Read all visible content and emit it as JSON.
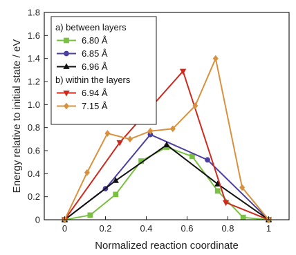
{
  "chart_data": {
    "type": "line",
    "title": "",
    "xlabel": "Normalized reaction coordinate",
    "ylabel": "Energy relative to initial state / eV",
    "xlim": [
      -0.1,
      1.1
    ],
    "ylim": [
      0,
      1.8
    ],
    "xticks": [
      0,
      0.2,
      0.4,
      0.6,
      0.8,
      1
    ],
    "xtick_labels": [
      "0",
      "0.2",
      "0.4",
      "0.6",
      "0.8",
      "1"
    ],
    "yticks": [
      0,
      0.2,
      0.4,
      0.6,
      0.8,
      1.0,
      1.2,
      1.4,
      1.6,
      1.8
    ],
    "ytick_labels": [
      "0",
      "0.2",
      "0.4",
      "0.6",
      "0.8",
      "1.0",
      "1.2",
      "1.4",
      "1.6",
      "1.8"
    ],
    "grid": false,
    "legend_position": "top-left",
    "legend_groups": [
      {
        "heading": "a) between layers",
        "series": [
          0,
          1,
          2
        ]
      },
      {
        "heading": "b) within the layers",
        "series": [
          3,
          4
        ]
      }
    ],
    "series": [
      {
        "name": "6.80 Å",
        "color": "#7ac143",
        "marker": "square",
        "x": [
          0,
          0.125,
          0.25,
          0.375,
          0.5,
          0.625,
          0.75,
          0.875,
          1.0
        ],
        "y": [
          0,
          0.04,
          0.22,
          0.51,
          0.63,
          0.55,
          0.25,
          0.02,
          0
        ]
      },
      {
        "name": "6.85 Å",
        "color": "#4b3fa0",
        "marker": "circle",
        "x": [
          0,
          0.2,
          0.42,
          0.7,
          1.0
        ],
        "y": [
          0,
          0.27,
          0.74,
          0.52,
          0
        ]
      },
      {
        "name": "6.96 Å",
        "color": "#111111",
        "marker": "triangle-up",
        "x": [
          0,
          0.25,
          0.5,
          0.75,
          1.0
        ],
        "y": [
          0,
          0.34,
          0.65,
          0.31,
          0
        ]
      },
      {
        "name": "6.94 Å",
        "color": "#cc2a1f",
        "marker": "triangle-down",
        "x": [
          0,
          0.27,
          0.58,
          0.79,
          1.0
        ],
        "y": [
          0,
          0.67,
          1.29,
          0.15,
          0
        ]
      },
      {
        "name": "7.15 Å",
        "color": "#d8913e",
        "marker": "diamond",
        "x": [
          0,
          0.11,
          0.21,
          0.32,
          0.42,
          0.53,
          0.64,
          0.74,
          0.87,
          1.0
        ],
        "y": [
          0,
          0.41,
          0.75,
          0.7,
          0.77,
          0.79,
          0.99,
          1.4,
          0.28,
          0
        ]
      }
    ]
  }
}
